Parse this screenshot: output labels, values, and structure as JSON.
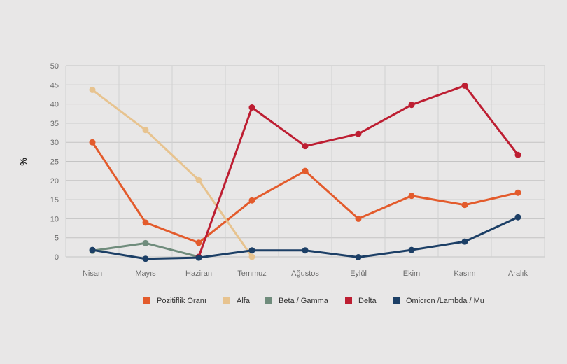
{
  "chart_data": {
    "type": "line",
    "title": "",
    "xlabel": "",
    "ylabel": "%",
    "ylim": [
      0,
      50
    ],
    "yticks": [
      0,
      5,
      10,
      15,
      20,
      25,
      30,
      35,
      40,
      45,
      50
    ],
    "grid": true,
    "legend_position": "bottom",
    "categories": [
      "Nisan",
      "Mayıs",
      "Haziran",
      "Temmuz",
      "Ağustos",
      "Eylül",
      "Ekim",
      "Kasım",
      "Aralık"
    ],
    "series": [
      {
        "name": "Pozitiflik Oranı",
        "color": "#e35b2c",
        "values": [
          30,
          9,
          3.7,
          14.8,
          22.5,
          10,
          16,
          13.6,
          16.8
        ]
      },
      {
        "name": "Alfa",
        "color": "#e7c38f",
        "values": [
          43.7,
          33.2,
          20.1,
          0,
          null,
          null,
          null,
          null,
          null
        ]
      },
      {
        "name": "Beta / Gamma",
        "color": "#6f8c7c",
        "values": [
          1.6,
          3.6,
          0,
          null,
          null,
          null,
          null,
          null,
          null
        ]
      },
      {
        "name": "Delta",
        "color": "#bd1e32",
        "values": [
          null,
          null,
          0,
          39.1,
          29,
          32.2,
          39.8,
          44.8,
          26.7
        ]
      },
      {
        "name": "Omicron /Lambda / Mu",
        "color": "#1c3f66",
        "values": [
          1.8,
          -0.5,
          -0.2,
          1.7,
          1.7,
          -0.1,
          1.8,
          4,
          10.4
        ]
      }
    ]
  }
}
